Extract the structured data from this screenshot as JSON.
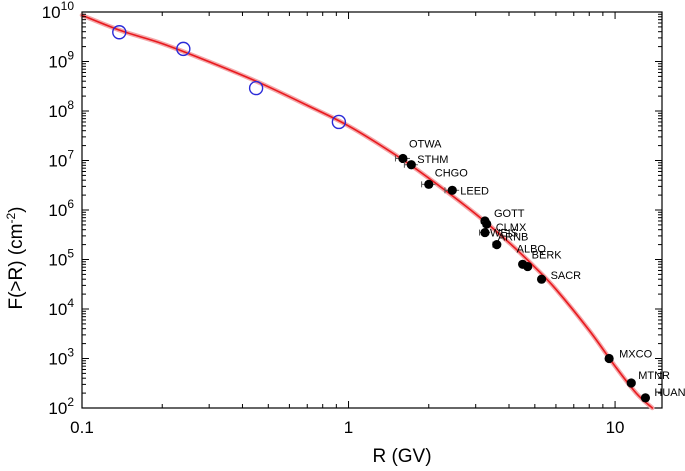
{
  "chart_data": {
    "type": "scatter",
    "xlabel": "R (GV)",
    "ylabel": "F(>R) (cm",
    "ylabel_exp": "-2",
    "ylabel_close": ")",
    "x_scale": "log",
    "y_scale": "log",
    "xlim": [
      0.1,
      15
    ],
    "ylim": [
      100,
      10000000000
    ],
    "x_ticks": [
      {
        "value": 0.1,
        "label": "0.1"
      },
      {
        "value": 1,
        "label": "1"
      },
      {
        "value": 10,
        "label": "10"
      }
    ],
    "y_ticks": [
      {
        "value": 100,
        "base": "10",
        "exp": "2"
      },
      {
        "value": 1000,
        "base": "10",
        "exp": "3"
      },
      {
        "value": 10000,
        "base": "10",
        "exp": "4"
      },
      {
        "value": 100000,
        "base": "10",
        "exp": "5"
      },
      {
        "value": 1000000,
        "base": "10",
        "exp": "6"
      },
      {
        "value": 10000000,
        "base": "10",
        "exp": "7"
      },
      {
        "value": 100000000,
        "base": "10",
        "exp": "8"
      },
      {
        "value": 1000000000,
        "base": "10",
        "exp": "9"
      },
      {
        "value": 10000000000,
        "base": "10",
        "exp": "10"
      }
    ],
    "grid": false,
    "legend": "none",
    "colors": {
      "fit": "#e8191e",
      "open_marker": "#2a2ad8",
      "filled_marker": "#000000"
    },
    "fit_curve": [
      {
        "x": 0.1,
        "y": 8600000000
      },
      {
        "x": 0.14,
        "y": 4200000000
      },
      {
        "x": 0.2,
        "y": 2300000000
      },
      {
        "x": 0.3,
        "y": 990000000
      },
      {
        "x": 0.45,
        "y": 400000000
      },
      {
        "x": 0.7,
        "y": 130000000
      },
      {
        "x": 1.0,
        "y": 50000000
      },
      {
        "x": 1.5,
        "y": 13000000
      },
      {
        "x": 2.0,
        "y": 4400000
      },
      {
        "x": 3.0,
        "y": 830000
      },
      {
        "x": 4.0,
        "y": 220000
      },
      {
        "x": 5.0,
        "y": 70000
      },
      {
        "x": 6.0,
        "y": 25000
      },
      {
        "x": 8.0,
        "y": 3700
      },
      {
        "x": 10.0,
        "y": 700
      },
      {
        "x": 12.0,
        "y": 200
      },
      {
        "x": 13.8,
        "y": 100
      }
    ],
    "open_points": [
      {
        "x": 0.138,
        "y": 3900000000
      },
      {
        "x": 0.24,
        "y": 1800000000
      },
      {
        "x": 0.45,
        "y": 290000000
      },
      {
        "x": 0.92,
        "y": 60000000
      }
    ],
    "stations": [
      {
        "name": "OTWA",
        "x": 1.6,
        "y": 11000000,
        "xerr": 0.1
      },
      {
        "name": "STHM",
        "x": 1.72,
        "y": 8200000,
        "xerr": 0.1
      },
      {
        "name": "CHGO",
        "x": 2.0,
        "y": 3300000,
        "xerr": 0.12
      },
      {
        "name": "LEED",
        "x": 2.45,
        "y": 2500000,
        "xerr": 0.15
      },
      {
        "name": "GOTT",
        "x": 3.25,
        "y": 600000,
        "xerr": 0.1
      },
      {
        "name": "CLMX",
        "x": 3.3,
        "y": 520000,
        "xerr": 0.1
      },
      {
        "name": "WEIS",
        "x": 3.25,
        "y": 350000,
        "xerr": 0.15
      },
      {
        "name": "ARNB",
        "x": 3.6,
        "y": 200000,
        "xerr": 0.12
      },
      {
        "name": "ALBQ",
        "x": 4.5,
        "y": 80000,
        "xerr": 0.1
      },
      {
        "name": "BERK",
        "x": 4.7,
        "y": 72000,
        "xerr": 0.1
      },
      {
        "name": "SACR",
        "x": 5.3,
        "y": 40000,
        "xerr": 0.1
      },
      {
        "name": "MXCO",
        "x": 9.5,
        "y": 1000,
        "xerr": 0.15
      },
      {
        "name": "MTNR",
        "x": 11.5,
        "y": 320,
        "xerr": 0.15
      },
      {
        "name": "HUAN",
        "x": 13.0,
        "y": 160,
        "xerr": 0.15
      }
    ]
  }
}
